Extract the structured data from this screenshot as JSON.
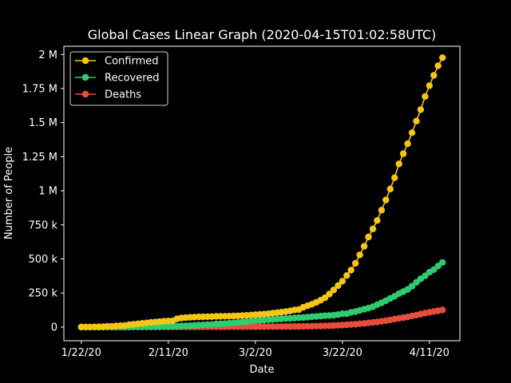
{
  "chart_data": {
    "type": "line",
    "title": "Global Cases Linear Graph (2020-04-15T01:02:58UTC)",
    "xlabel": "Date",
    "ylabel": "Number of People",
    "x_start": "2020-01-22",
    "x_end": "2020-04-14",
    "x_ticks": [
      {
        "date": "2020-01-22",
        "label": "1/22/20"
      },
      {
        "date": "2020-02-11",
        "label": "2/11/20"
      },
      {
        "date": "2020-03-02",
        "label": "3/2/20"
      },
      {
        "date": "2020-03-22",
        "label": "3/22/20"
      },
      {
        "date": "2020-04-11",
        "label": "4/11/20"
      }
    ],
    "y_ticks": [
      {
        "value": 0,
        "label": "0"
      },
      {
        "value": 250000,
        "label": "250 k"
      },
      {
        "value": 500000,
        "label": "500 k"
      },
      {
        "value": 750000,
        "label": "750 k"
      },
      {
        "value": 1000000,
        "label": "1 M"
      },
      {
        "value": 1250000,
        "label": "1.25 M"
      },
      {
        "value": 1500000,
        "label": "1.5 M"
      },
      {
        "value": 1750000,
        "label": "1.75 M"
      },
      {
        "value": 2000000,
        "label": "2 M"
      }
    ],
    "xlim": [
      "2020-01-18",
      "2020-04-18"
    ],
    "ylim": [
      -100000,
      2060000
    ],
    "grid": false,
    "legend": "top-left",
    "series": [
      {
        "name": "Confirmed",
        "color": "#f5c518",
        "values": [
          555,
          654,
          941,
          1434,
          2118,
          2927,
          5578,
          6166,
          8234,
          9927,
          12038,
          16787,
          19881,
          23892,
          27635,
          30794,
          34391,
          37120,
          40150,
          42762,
          44802,
          45221,
          60368,
          66885,
          69030,
          71224,
          73258,
          75136,
          75639,
          76197,
          76819,
          78572,
          78958,
          79561,
          80406,
          81388,
          82746,
          84112,
          86011,
          88369,
          90306,
          92840,
          95120,
          97886,
          101801,
          105847,
          109821,
          113590,
          118620,
          125875,
          128352,
          145205,
          156101,
          167454,
          181574,
          197102,
          214821,
          242570,
          272208,
          304507,
          336953,
          378235,
          418045,
          467653,
          529591,
          593291,
          660706,
          720117,
          782365,
          857487,
          932605,
          1013157,
          1095917,
          1197405,
          1272115,
          1345101,
          1426096,
          1511104,
          1595350,
          1691719,
          1771514,
          1846680,
          1917320,
          1976191
        ]
      },
      {
        "name": "Recovered",
        "color": "#2ecc71",
        "values": [
          28,
          30,
          36,
          39,
          52,
          61,
          107,
          126,
          143,
          222,
          284,
          472,
          623,
          852,
          1124,
          1487,
          2011,
          2616,
          3244,
          3946,
          4683,
          5150,
          6295,
          8058,
          9395,
          10865,
          12583,
          14352,
          16121,
          18177,
          18890,
          22886,
          23394,
          25227,
          27905,
          30384,
          33277,
          36711,
          39782,
          42716,
          45602,
          48228,
          51170,
          53796,
          55865,
          58358,
          60694,
          62494,
          64404,
          67003,
          68324,
          70251,
          72624,
          76034,
          78088,
          80840,
          83207,
          84854,
          87256,
          91499,
          97899,
          98351,
          107890,
          113604,
          122150,
          130915,
          139415,
          149082,
          164566,
          178034,
          193177,
          210263,
          225796,
          246152,
          260012,
          276515,
          300054,
          328661,
          353975,
          376096,
          402110,
          421722,
          448655,
          474261
        ]
      },
      {
        "name": "Deaths",
        "color": "#e74c3c",
        "values": [
          17,
          18,
          26,
          42,
          56,
          82,
          131,
          133,
          171,
          213,
          259,
          362,
          426,
          492,
          564,
          634,
          719,
          806,
          906,
          1013,
          1113,
          1118,
          1371,
          1523,
          1666,
          1770,
          1868,
          2007,
          2122,
          2247,
          2251,
          2458,
          2469,
          2629,
          2708,
          2770,
          2814,
          2872,
          2941,
          2996,
          3085,
          3160,
          3254,
          3348,
          3460,
          3558,
          3802,
          3988,
          4262,
          4615,
          4720,
          5404,
          5819,
          6440,
          7126,
          7905,
          8733,
          9867,
          11299,
          12973,
          14623,
          16497,
          18615,
          21181,
          23970,
          27198,
          30652,
          33925,
          37582,
          42107,
          46809,
          52983,
          58787,
          64606,
          69374,
          74565,
          81865,
          88338,
          95455,
          102525,
          108503,
          114091,
          119482,
          125983
        ]
      }
    ]
  }
}
